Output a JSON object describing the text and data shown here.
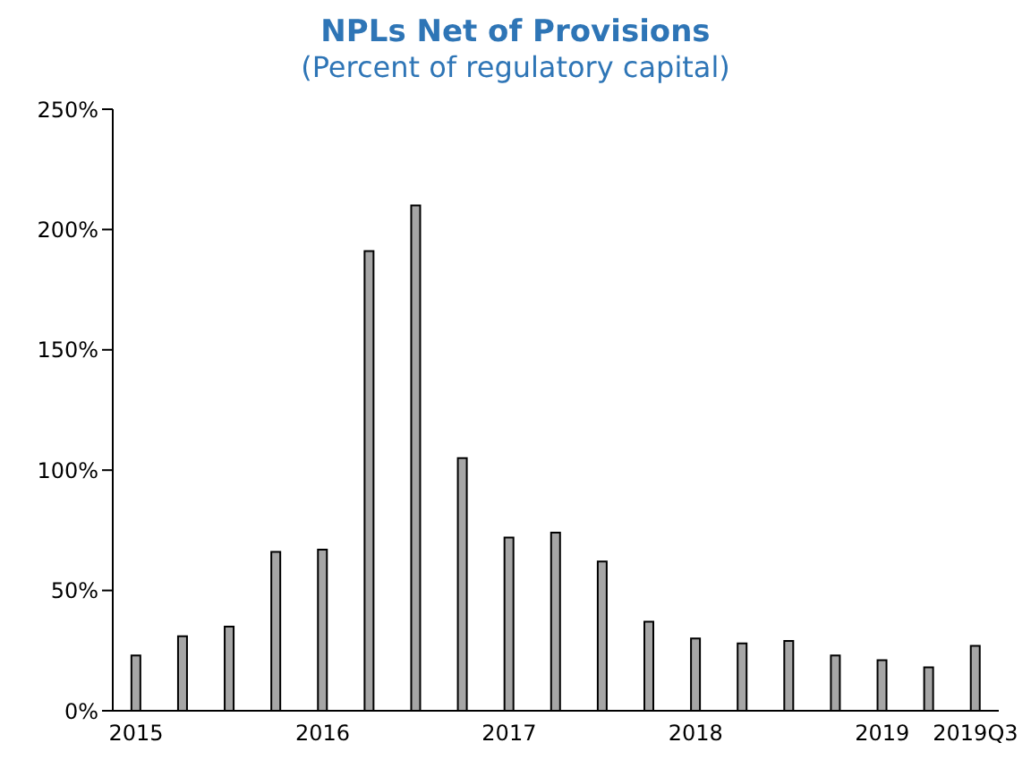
{
  "chart_data": {
    "type": "bar",
    "title": "NPLs Net of Provisions",
    "subtitle": "(Percent of regulatory capital)",
    "categories": [
      "2015",
      null,
      null,
      null,
      "2016",
      null,
      null,
      null,
      "2017",
      null,
      null,
      null,
      "2018",
      null,
      null,
      null,
      "2019",
      null,
      "2019Q3"
    ],
    "values": [
      23,
      31,
      35,
      66,
      67,
      191,
      210,
      105,
      72,
      74,
      62,
      37,
      30,
      28,
      29,
      23,
      21,
      18,
      27
    ],
    "color": "#a6a6a6",
    "ylim": [
      0,
      250
    ],
    "yticks": [
      {
        "value": 0,
        "label": "0%"
      },
      {
        "value": 50,
        "label": "50%"
      },
      {
        "value": 100,
        "label": "100%"
      },
      {
        "value": 150,
        "label": "150%"
      },
      {
        "value": 200,
        "label": "200%"
      },
      {
        "value": 250,
        "label": "250%"
      }
    ],
    "grid": false
  }
}
